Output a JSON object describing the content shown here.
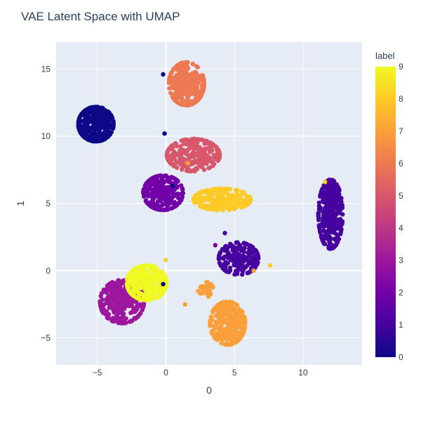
{
  "chart_data": {
    "type": "scatter",
    "title": "VAE Latent Space with UMAP",
    "xlabel": "0",
    "ylabel": "1",
    "xlim": [
      -8,
      14.3
    ],
    "ylim": [
      -7,
      17
    ],
    "xticks": [
      -5,
      0,
      5,
      10
    ],
    "xtick_labels": [
      "−5",
      "0",
      "5",
      "10"
    ],
    "yticks": [
      -5,
      0,
      5,
      10,
      15
    ],
    "ytick_labels": [
      "−5",
      "0",
      "5",
      "10",
      "15"
    ],
    "grid": true,
    "plot_bg": "#e5ecf6",
    "colorscale_name": "plasma",
    "colorscale": [
      "#0d0887",
      "#46039f",
      "#7201a8",
      "#9c179e",
      "#bd3786",
      "#d8576b",
      "#ed7953",
      "#fb9f3a",
      "#fdca26",
      "#f0f921"
    ],
    "colorbar": {
      "title": "label",
      "min": 0,
      "max": 9,
      "ticks": [
        0,
        1,
        2,
        3,
        4,
        5,
        6,
        7,
        8,
        9
      ],
      "tick_labels": [
        "0",
        "1",
        "2",
        "3",
        "4",
        "5",
        "6",
        "7",
        "8",
        "9"
      ]
    },
    "clusters": [
      {
        "label": 0,
        "center": [
          -5.1,
          10.9
        ],
        "spread": [
          0.8,
          0.8
        ],
        "count": 320
      },
      {
        "label": 1,
        "center": [
          12.0,
          4.2
        ],
        "spread": [
          0.55,
          1.6
        ],
        "count": 340
      },
      {
        "label": 1,
        "center": [
          5.3,
          0.9
        ],
        "spread": [
          0.9,
          0.75
        ],
        "count": 200
      },
      {
        "label": 2,
        "center": [
          -0.2,
          5.8
        ],
        "spread": [
          0.9,
          0.8
        ],
        "count": 280
      },
      {
        "label": 3,
        "center": [
          -3.2,
          -2.3
        ],
        "spread": [
          1.0,
          1.0
        ],
        "count": 300
      },
      {
        "label": 5,
        "center": [
          2.0,
          8.6
        ],
        "spread": [
          1.2,
          0.75
        ],
        "count": 260
      },
      {
        "label": 6,
        "center": [
          1.5,
          13.9
        ],
        "spread": [
          0.8,
          1.0
        ],
        "count": 280
      },
      {
        "label": 7,
        "center": [
          4.5,
          -3.9
        ],
        "spread": [
          0.8,
          1.0
        ],
        "count": 280
      },
      {
        "label": 7,
        "center": [
          2.9,
          -1.4
        ],
        "spread": [
          0.35,
          0.35
        ],
        "count": 30
      },
      {
        "label": 8,
        "center": [
          4.1,
          5.3
        ],
        "spread": [
          1.3,
          0.5
        ],
        "count": 240
      },
      {
        "label": 9,
        "center": [
          -1.4,
          -0.9
        ],
        "spread": [
          0.9,
          0.8
        ],
        "count": 300
      }
    ],
    "outliers": [
      {
        "x": -0.1,
        "y": 10.2,
        "label": 0
      },
      {
        "x": -0.2,
        "y": 14.6,
        "label": 0
      },
      {
        "x": 4.3,
        "y": 2.8,
        "label": 1
      },
      {
        "x": 7.6,
        "y": 0.4,
        "label": 8
      },
      {
        "x": 6.4,
        "y": 0.0,
        "label": 7
      },
      {
        "x": 1.4,
        "y": -2.5,
        "label": 7
      },
      {
        "x": -0.2,
        "y": -1.0,
        "label": 0
      },
      {
        "x": 11.6,
        "y": 6.6,
        "label": 8
      },
      {
        "x": 0.5,
        "y": 6.3,
        "label": 0
      },
      {
        "x": 0.0,
        "y": 0.8,
        "label": 8
      },
      {
        "x": 3.6,
        "y": 1.9,
        "label": 2
      },
      {
        "x": 1.6,
        "y": 8.0,
        "label": 7
      },
      {
        "x": -1.2,
        "y": 0.4,
        "label": 9
      }
    ]
  }
}
